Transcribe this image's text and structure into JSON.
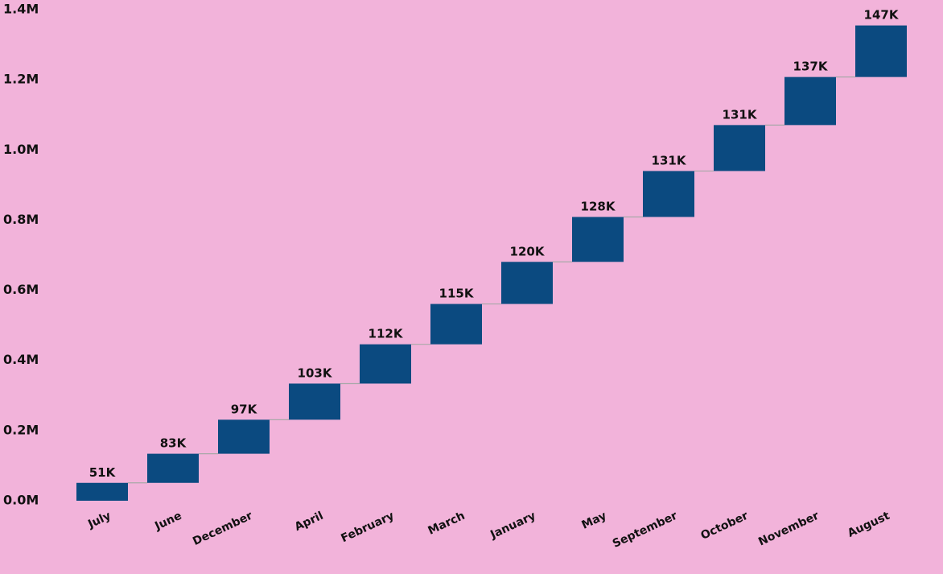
{
  "chart_data": {
    "type": "waterfall",
    "categories": [
      "July",
      "June",
      "December",
      "April",
      "February",
      "March",
      "January",
      "May",
      "September",
      "October",
      "November",
      "August"
    ],
    "values": [
      51000,
      83000,
      97000,
      103000,
      112000,
      115000,
      120000,
      128000,
      131000,
      131000,
      137000,
      147000
    ],
    "data_labels": [
      "51K",
      "83K",
      "97K",
      "103K",
      "112K",
      "115K",
      "120K",
      "128K",
      "131K",
      "131K",
      "137K",
      "147K"
    ],
    "y_ticks": [
      0,
      200000,
      400000,
      600000,
      800000,
      1000000,
      1200000,
      1400000
    ],
    "y_tick_labels": [
      "0.0M",
      "0.2M",
      "0.4M",
      "0.6M",
      "0.8M",
      "1.0M",
      "1.2M",
      "1.4M"
    ],
    "ylim": [
      0,
      1400000
    ],
    "grid": false,
    "legend": "none",
    "colors": {
      "background": "#f2b3da",
      "bar": "#0b4a80",
      "connector": "#a8a8a8"
    }
  }
}
